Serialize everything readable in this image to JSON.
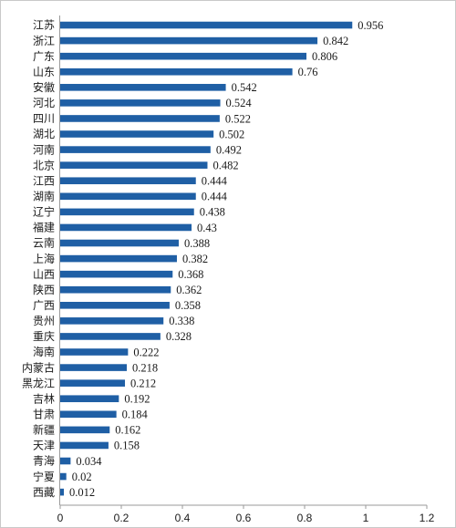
{
  "chart_data": {
    "type": "bar",
    "orientation": "horizontal",
    "title": "",
    "xlabel": "",
    "ylabel": "",
    "categories": [
      "江苏",
      "浙江",
      "广东",
      "山东",
      "安徽",
      "河北",
      "四川",
      "湖北",
      "河南",
      "北京",
      "江西",
      "湖南",
      "辽宁",
      "福建",
      "云南",
      "上海",
      "山西",
      "陕西",
      "广西",
      "贵州",
      "重庆",
      "海南",
      "内蒙古",
      "黑龙江",
      "吉林",
      "甘肃",
      "新疆",
      "天津",
      "青海",
      "宁夏",
      "西藏"
    ],
    "values": [
      0.956,
      0.842,
      0.806,
      0.76,
      0.542,
      0.524,
      0.522,
      0.502,
      0.492,
      0.482,
      0.444,
      0.444,
      0.438,
      0.43,
      0.388,
      0.382,
      0.368,
      0.362,
      0.358,
      0.338,
      0.328,
      0.222,
      0.218,
      0.212,
      0.192,
      0.184,
      0.162,
      0.158,
      0.034,
      0.02,
      0.012
    ],
    "value_labels": [
      "0.956",
      "0.842",
      "0.806",
      "0.76",
      "0.542",
      "0.524",
      "0.522",
      "0.502",
      "0.492",
      "0.482",
      "0.444",
      "0.444",
      "0.438",
      "0.43",
      "0.388",
      "0.382",
      "0.368",
      "0.362",
      "0.358",
      "0.338",
      "0.328",
      "0.222",
      "0.218",
      "0.212",
      "0.192",
      "0.184",
      "0.162",
      "0.158",
      "0.034",
      "0.02",
      "0.012"
    ],
    "xlim": [
      0,
      1.2
    ],
    "x_ticks": [
      "0",
      "0.2",
      "0.4",
      "0.6",
      "0.8",
      "1",
      "1.2"
    ],
    "grid": false,
    "legend": "none",
    "colors": {
      "bar": "#1f5fa5",
      "axis": "#9a9a9a",
      "text": "#1a1a1a"
    }
  }
}
